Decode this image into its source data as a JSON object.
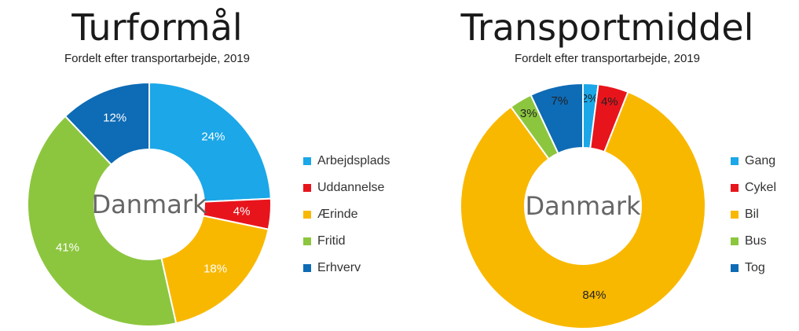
{
  "chart_data": [
    {
      "type": "pie",
      "donut": true,
      "title": "Turformål",
      "subtitle": "Fordelt efter transportarbejde, 2019",
      "center_label": "Danmark",
      "categories": [
        "Arbejdsplads",
        "Uddannelse",
        "Ærinde",
        "Fritid",
        "Erhverv"
      ],
      "values": [
        24,
        4,
        18,
        41,
        12
      ],
      "data_labels": [
        "24%",
        "4%",
        "18%",
        "41%",
        "12%"
      ],
      "colors": [
        "#1BA7E8",
        "#E8141C",
        "#F9B800",
        "#8CC63F",
        "#0E6BB5"
      ],
      "label_colors": [
        "#ffffff",
        "#ffffff",
        "#ffffff",
        "#ffffff",
        "#ffffff"
      ],
      "legend_position": "right"
    },
    {
      "type": "pie",
      "donut": true,
      "title": "Transportmiddel",
      "subtitle": "Fordelt efter transportarbejde, 2019",
      "center_label": "Danmark",
      "categories": [
        "Gang",
        "Cykel",
        "Bil",
        "Bus",
        "Tog"
      ],
      "values": [
        2,
        4,
        84,
        3,
        7
      ],
      "data_labels": [
        "2%",
        "4%",
        "84%",
        "3%",
        "7%"
      ],
      "colors": [
        "#1BA7E8",
        "#E8141C",
        "#F9B800",
        "#8CC63F",
        "#0E6BB5"
      ],
      "label_colors": [
        "#222222",
        "#222222",
        "#222222",
        "#222222",
        "#222222"
      ],
      "legend_position": "right"
    }
  ]
}
